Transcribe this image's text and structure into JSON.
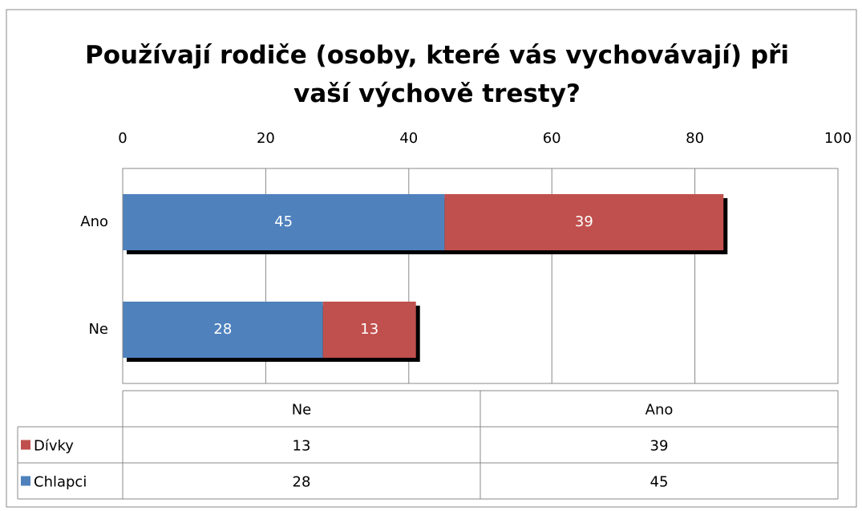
{
  "chart_data": {
    "type": "bar",
    "orientation": "horizontal",
    "stacked": true,
    "title": "Používají rodiče (osoby, které vás vychovávají) při vaší výchově tresty?",
    "categories": [
      "Ne",
      "Ano"
    ],
    "series": [
      {
        "name": "Chlapci",
        "color": "#4f81bd",
        "values": [
          28,
          45
        ]
      },
      {
        "name": "Dívky",
        "color": "#c0504d",
        "values": [
          13,
          39
        ]
      }
    ],
    "xlim": [
      0,
      100
    ],
    "xticks": [
      0,
      20,
      40,
      60,
      80,
      100
    ],
    "grid": true,
    "data_table": true
  }
}
